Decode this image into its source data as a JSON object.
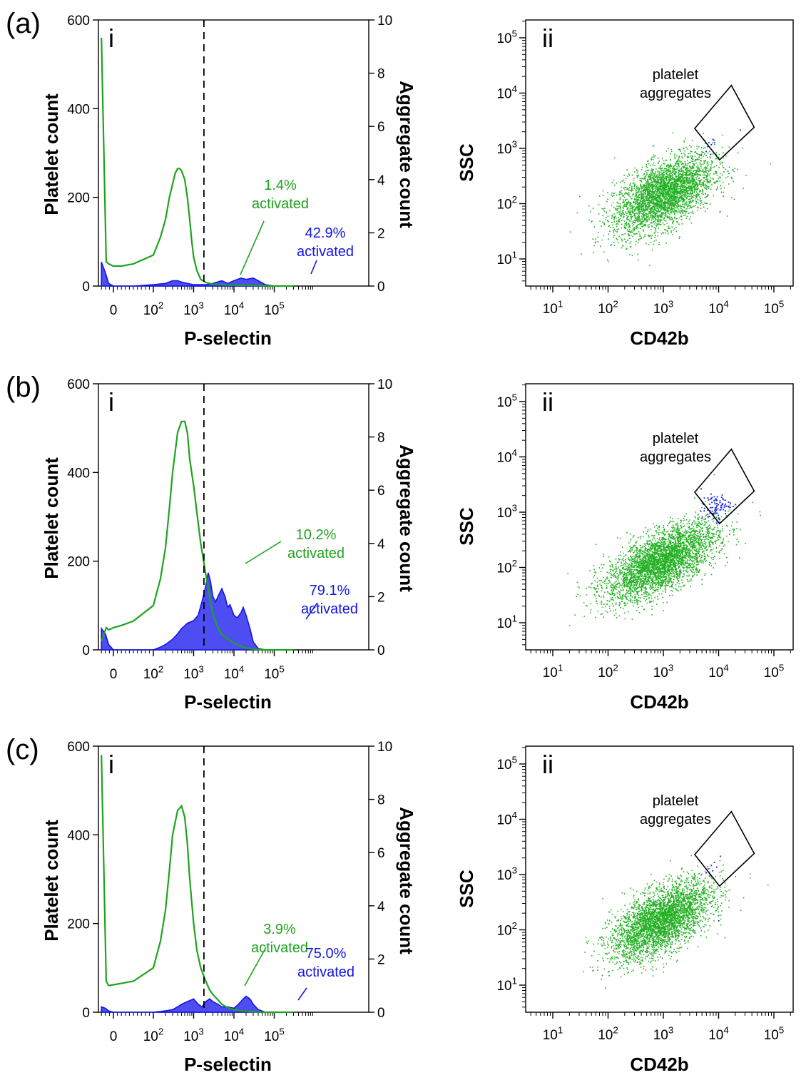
{
  "colors": {
    "platelet": "#1fa31f",
    "aggregate": "#1414e6",
    "aggregate_fill": "#4d4df2",
    "scatter_platelet": "#22b022"
  },
  "panels": [
    {
      "label": "(a)",
      "histogram": {
        "roman": "i",
        "xlabel": "P-selectin",
        "ylabel_left": "Platelet count",
        "ylabel_right": "Aggregate count",
        "platelet_annotation": [
          "1.4%",
          "activated"
        ],
        "aggregate_annotation": [
          "42.9%",
          "activated"
        ]
      },
      "scatter": {
        "roman": "ii",
        "xlabel": "CD42b",
        "ylabel": "SSC",
        "gate_label": [
          "platelet",
          "aggregates"
        ]
      }
    },
    {
      "label": "(b)",
      "histogram": {
        "roman": "i",
        "xlabel": "P-selectin",
        "ylabel_left": "Platelet count",
        "ylabel_right": "Aggregate count",
        "platelet_annotation": [
          "10.2%",
          "activated"
        ],
        "aggregate_annotation": [
          "79.1%",
          "activated"
        ]
      },
      "scatter": {
        "roman": "ii",
        "xlabel": "CD42b",
        "ylabel": "SSC",
        "gate_label": [
          "platelet",
          "aggregates"
        ]
      }
    },
    {
      "label": "(c)",
      "histogram": {
        "roman": "i",
        "xlabel": "P-selectin",
        "ylabel_left": "Platelet count",
        "ylabel_right": "Aggregate count",
        "platelet_annotation": [
          "3.9%",
          "activated"
        ],
        "aggregate_annotation": [
          "75.0%",
          "activated"
        ]
      },
      "scatter": {
        "roman": "ii",
        "xlabel": "CD42b",
        "ylabel": "SSC",
        "gate_label": [
          "platelet",
          "aggregates"
        ]
      }
    }
  ],
  "chart_data": [
    {
      "panel": "(a) i",
      "type": "area",
      "x_scale": "logicle",
      "x_ticks": [
        "0",
        "10^2",
        "10^3",
        "10^4",
        "10^5"
      ],
      "ylim_left": [
        0,
        600
      ],
      "yticks_left": [
        0,
        200,
        400,
        600
      ],
      "ylim_right": [
        0,
        10
      ],
      "yticks_right": [
        0,
        2,
        4,
        6,
        8,
        10
      ],
      "threshold_x": 1800,
      "series": [
        {
          "axis": "left",
          "style": "line",
          "x": [
            -30,
            -18,
            -12,
            0,
            20,
            50,
            100,
            150,
            200,
            250,
            300,
            350,
            400,
            450,
            500,
            600,
            700,
            800,
            900,
            1000,
            1200,
            1500,
            2000,
            3000,
            5000,
            10000,
            20000,
            50000,
            100000,
            300000
          ],
          "y": [
            560,
            55,
            50,
            45,
            45,
            50,
            70,
            110,
            150,
            200,
            230,
            255,
            265,
            265,
            260,
            240,
            200,
            150,
            100,
            65,
            35,
            15,
            8,
            4,
            3,
            2,
            2,
            1,
            0,
            0
          ]
        },
        {
          "axis": "right",
          "style": "area",
          "x": [
            -30,
            -20,
            -12,
            0,
            50,
            100,
            200,
            300,
            400,
            500,
            700,
            1000,
            1500,
            2000,
            3000,
            5000,
            7000,
            10000,
            15000,
            20000,
            30000,
            40000,
            60000,
            100000,
            300000
          ],
          "y": [
            0.9,
            0.5,
            0.1,
            0,
            0,
            0.05,
            0.1,
            0.2,
            0.2,
            0.15,
            0.1,
            0.05,
            0.05,
            0.05,
            0.1,
            0.2,
            0.1,
            0.2,
            0.3,
            0.25,
            0.3,
            0.2,
            0.05,
            0,
            0
          ]
        }
      ]
    },
    {
      "panel": "(a) ii",
      "type": "scatter",
      "x_scale": "log",
      "y_scale": "log",
      "xlim": [
        3,
        300000
      ],
      "ylim": [
        3,
        300000
      ],
      "x_ticks": [
        "10^1",
        "10^2",
        "10^3",
        "10^4",
        "10^5"
      ],
      "y_ticks": [
        "10^1",
        "10^2",
        "10^3",
        "10^4",
        "10^5"
      ],
      "gate_corners": [
        [
          3700,
          2300
        ],
        [
          10400,
          620
        ],
        [
          44000,
          2400
        ],
        [
          17000,
          13800
        ]
      ],
      "series": [
        {
          "role": "platelets",
          "center": [
            1000,
            150
          ],
          "spread_log10": [
            0.45,
            0.35
          ],
          "correlation": 0.55,
          "count": 3500
        },
        {
          "role": "aggregates",
          "points": [
            [
              5800,
              900
            ],
            [
              6200,
              1100
            ],
            [
              6500,
              1300
            ],
            [
              7000,
              800
            ],
            [
              7200,
              1200
            ],
            [
              7700,
              1500
            ],
            [
              8200,
              1300
            ],
            [
              24000,
              2200
            ]
          ]
        }
      ]
    },
    {
      "panel": "(b) i",
      "type": "area",
      "x_scale": "logicle",
      "x_ticks": [
        "0",
        "10^2",
        "10^3",
        "10^4",
        "10^5"
      ],
      "ylim_left": [
        0,
        600
      ],
      "yticks_left": [
        0,
        200,
        400,
        600
      ],
      "ylim_right": [
        0,
        10
      ],
      "yticks_right": [
        0,
        2,
        4,
        6,
        8,
        10
      ],
      "threshold_x": 1800,
      "series": [
        {
          "axis": "left",
          "style": "line",
          "x": [
            -30,
            -18,
            -12,
            0,
            20,
            50,
            100,
            150,
            200,
            250,
            300,
            400,
            500,
            600,
            700,
            800,
            1000,
            1200,
            1500,
            2000,
            2500,
            3000,
            4000,
            5000,
            7000,
            10000,
            15000,
            20000,
            30000,
            50000,
            100000,
            300000
          ],
          "y": [
            20,
            50,
            45,
            50,
            55,
            65,
            100,
            160,
            230,
            320,
            400,
            490,
            515,
            515,
            490,
            430,
            370,
            310,
            240,
            170,
            120,
            80,
            50,
            35,
            25,
            15,
            8,
            4,
            2,
            0,
            0,
            0
          ]
        },
        {
          "axis": "right",
          "style": "area",
          "x": [
            -30,
            -20,
            -12,
            0,
            30,
            70,
            100,
            150,
            200,
            300,
            400,
            500,
            700,
            1000,
            1300,
            1600,
            2000,
            2300,
            2600,
            3000,
            3500,
            4000,
            5000,
            6000,
            7000,
            8000,
            10000,
            12000,
            15000,
            17000,
            20000,
            25000,
            30000,
            40000,
            60000,
            100000,
            300000
          ],
          "y": [
            0.8,
            0.6,
            0.2,
            0,
            0,
            0,
            0,
            0.1,
            0.2,
            0.4,
            0.6,
            0.8,
            1.0,
            1.1,
            1.3,
            1.8,
            2.4,
            2.9,
            2.6,
            2.0,
            1.8,
            2.0,
            2.3,
            2.0,
            1.6,
            1.7,
            1.3,
            1.2,
            1.4,
            1.6,
            1.3,
            0.8,
            0.3,
            0.05,
            0,
            0,
            0
          ]
        }
      ]
    },
    {
      "panel": "(b) ii",
      "type": "scatter",
      "x_scale": "log",
      "y_scale": "log",
      "xlim": [
        3,
        300000
      ],
      "ylim": [
        3,
        300000
      ],
      "x_ticks": [
        "10^1",
        "10^2",
        "10^3",
        "10^4",
        "10^5"
      ],
      "y_ticks": [
        "10^1",
        "10^2",
        "10^3",
        "10^4",
        "10^5"
      ],
      "gate_corners": [
        [
          3700,
          2300
        ],
        [
          10400,
          620
        ],
        [
          44000,
          2400
        ],
        [
          17000,
          13800
        ]
      ],
      "series": [
        {
          "role": "platelets",
          "center": [
            900,
            130
          ],
          "spread_log10": [
            0.5,
            0.35
          ],
          "correlation": 0.65,
          "count": 3800
        },
        {
          "role": "aggregates",
          "center": [
            8500,
            1250
          ],
          "spread_log10": [
            0.13,
            0.12
          ],
          "correlation": 0.3,
          "count": 90
        }
      ]
    },
    {
      "panel": "(c) i",
      "type": "area",
      "x_scale": "logicle",
      "x_ticks": [
        "0",
        "10^2",
        "10^3",
        "10^4",
        "10^5"
      ],
      "ylim_left": [
        0,
        600
      ],
      "yticks_left": [
        0,
        200,
        400,
        600
      ],
      "ylim_right": [
        0,
        10
      ],
      "yticks_right": [
        0,
        2,
        4,
        6,
        8,
        10
      ],
      "threshold_x": 1800,
      "series": [
        {
          "axis": "left",
          "style": "line",
          "x": [
            -30,
            -18,
            -12,
            0,
            20,
            50,
            100,
            150,
            200,
            250,
            300,
            400,
            500,
            600,
            700,
            800,
            1000,
            1200,
            1500,
            2000,
            2500,
            3000,
            4000,
            5000,
            7000,
            10000,
            15000,
            20000,
            30000,
            50000,
            100000,
            300000
          ],
          "y": [
            580,
            70,
            60,
            62,
            65,
            70,
            100,
            160,
            230,
            320,
            400,
            455,
            465,
            440,
            380,
            300,
            200,
            140,
            100,
            70,
            50,
            40,
            28,
            18,
            10,
            6,
            3,
            2,
            1,
            0,
            0,
            0
          ]
        },
        {
          "axis": "right",
          "style": "area",
          "x": [
            -30,
            -20,
            -12,
            0,
            50,
            100,
            200,
            300,
            400,
            500,
            700,
            1000,
            1300,
            1600,
            2000,
            2500,
            3000,
            4000,
            5000,
            7000,
            10000,
            13000,
            17000,
            20000,
            25000,
            30000,
            40000,
            60000,
            100000,
            300000
          ],
          "y": [
            0.2,
            0.15,
            0.05,
            0,
            0,
            0,
            0.05,
            0.1,
            0.2,
            0.3,
            0.4,
            0.5,
            0.3,
            0.2,
            0.4,
            0.5,
            0.4,
            0.3,
            0.2,
            0.2,
            0.15,
            0.3,
            0.5,
            0.6,
            0.5,
            0.3,
            0.1,
            0,
            0,
            0
          ]
        }
      ]
    },
    {
      "panel": "(c) ii",
      "type": "scatter",
      "x_scale": "log",
      "y_scale": "log",
      "xlim": [
        3,
        300000
      ],
      "ylim": [
        3,
        300000
      ],
      "x_ticks": [
        "10^1",
        "10^2",
        "10^3",
        "10^4",
        "10^5"
      ],
      "y_ticks": [
        "10^1",
        "10^2",
        "10^3",
        "10^4",
        "10^5"
      ],
      "gate_corners": [
        [
          3700,
          2300
        ],
        [
          10400,
          620
        ],
        [
          44000,
          2400
        ],
        [
          17000,
          13800
        ]
      ],
      "series": [
        {
          "role": "platelets",
          "center": [
            900,
            150
          ],
          "spread_log10": [
            0.45,
            0.35
          ],
          "correlation": 0.6,
          "count": 3600
        },
        {
          "role": "aggregates",
          "points": [
            [
              5800,
              1100
            ],
            [
              6300,
              1300
            ],
            [
              6800,
              1000
            ],
            [
              7200,
              1500
            ],
            [
              7600,
              1200
            ],
            [
              8200,
              1700
            ],
            [
              9000,
              1400
            ],
            [
              10500,
              2200
            ],
            [
              9800,
              150
            ]
          ]
        }
      ]
    }
  ]
}
